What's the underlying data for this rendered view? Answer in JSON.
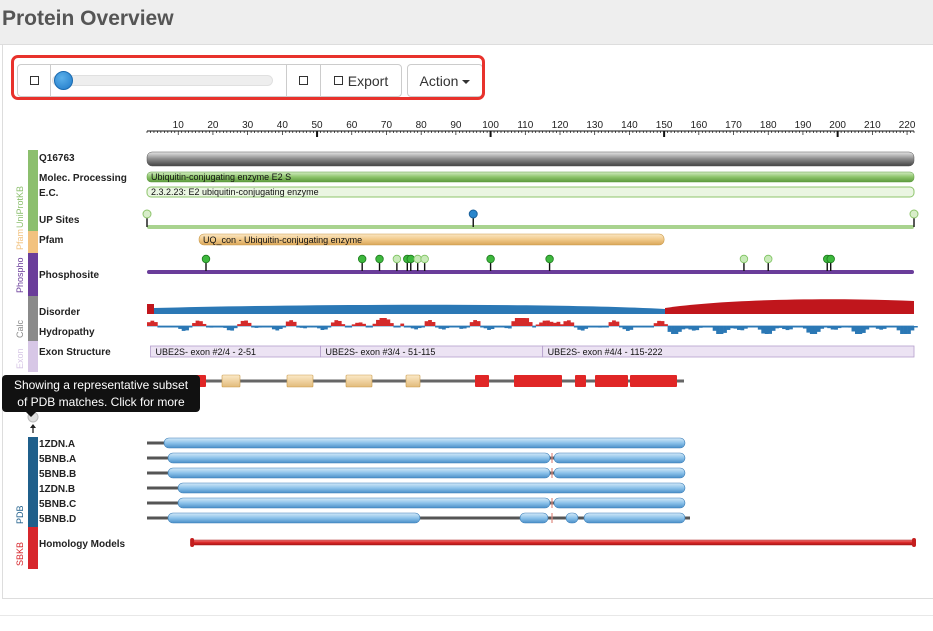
{
  "page": {
    "title": "Protein Overview"
  },
  "toolbar": {
    "export_label": "Export",
    "action_label": "Action",
    "slider_value": 0,
    "highlight_color": "#e8322c"
  },
  "ruler": {
    "min": 1,
    "max": 222,
    "ticks": [
      10,
      20,
      30,
      40,
      50,
      60,
      70,
      80,
      90,
      100,
      110,
      120,
      130,
      140,
      150,
      160,
      170,
      180,
      190,
      200,
      210,
      220
    ]
  },
  "categories": [
    {
      "label": "UniProtKB",
      "color": "#8cbf6e"
    },
    {
      "label": "Pfam",
      "color": "#f2c27f"
    },
    {
      "label": "Phospho",
      "color": "#6a3d9a"
    },
    {
      "label": "Calc",
      "color": "#8a8a8a"
    },
    {
      "label": "Exon",
      "color": "#d7c7e6"
    },
    {
      "label": "PDB",
      "color": "#1f5f8b"
    },
    {
      "label": "SBKB",
      "color": "#d7262c"
    }
  ],
  "tracks": {
    "uniprot_id": "Q16763",
    "molec_label": "Molec. Processing",
    "molec_text": "Ubiquitin-conjugating enzyme E2 S",
    "ec_label": "E.C.",
    "ec_text": "2.3.2.23: E2 ubiquitin-conjugating enzyme",
    "upsites_label": "UP Sites",
    "upsites": [
      1,
      95,
      222
    ],
    "pfam_label": "Pfam",
    "pfam": {
      "text": "UQ_con - Ubiquitin-conjugating enzyme",
      "start": 16,
      "end": 150
    },
    "phospho_label": "Phosphosite",
    "phosphosites": [
      {
        "pos": 18,
        "type": "dark"
      },
      {
        "pos": 63,
        "type": "dark"
      },
      {
        "pos": 68,
        "type": "dark"
      },
      {
        "pos": 73,
        "type": "light"
      },
      {
        "pos": 76,
        "type": "dark"
      },
      {
        "pos": 77,
        "type": "dark"
      },
      {
        "pos": 79,
        "type": "light"
      },
      {
        "pos": 81,
        "type": "light"
      },
      {
        "pos": 100,
        "type": "dark"
      },
      {
        "pos": 117,
        "type": "dark"
      },
      {
        "pos": 173,
        "type": "light"
      },
      {
        "pos": 180,
        "type": "light"
      },
      {
        "pos": 197,
        "type": "dark"
      },
      {
        "pos": 198,
        "type": "dark"
      }
    ],
    "disorder_label": "Disorder",
    "disorder": {
      "ordered_end": 150
    },
    "hydropathy_label": "Hydropathy",
    "exon_label": "Exon Structure",
    "exons": [
      {
        "text": "UBE2S- exon #2/4 - 2-51",
        "start": 2,
        "end": 51
      },
      {
        "text": "UBE2S- exon #3/4 - 51-115",
        "start": 51,
        "end": 115
      },
      {
        "text": "UBE2S- exon #4/4 - 115-222",
        "start": 115,
        "end": 222
      }
    ],
    "homology_label": "Homology Models",
    "homology": {
      "start": 14,
      "end": 222
    }
  },
  "pdb_rows": [
    {
      "label": "1ZDN.A"
    },
    {
      "label": "5BNB.A"
    },
    {
      "label": "5BNB.B"
    },
    {
      "label": "1ZDN.B"
    },
    {
      "label": "5BNB.C"
    },
    {
      "label": "5BNB.D"
    }
  ],
  "tooltip": {
    "line1": "Showing a representative subset",
    "line2": "of PDB matches. Click for more"
  }
}
